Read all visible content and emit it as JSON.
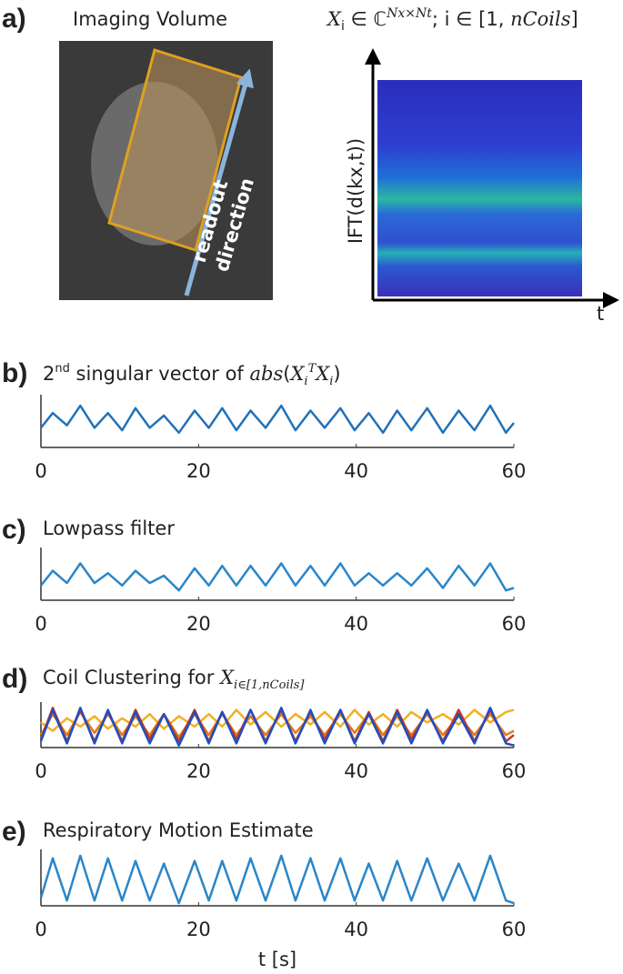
{
  "panel_a": {
    "label": "a)",
    "image_title": "Imaging Volume",
    "arrow_text": [
      "readout",
      "direction"
    ],
    "formula": [
      "X",
      "i",
      " ∈ ℂ",
      "Nx×Nt",
      "; i ∈ [1, ",
      "nCoils",
      "]"
    ],
    "y_axis_label": "IFT(d(kx,t))",
    "x_axis_label": "t"
  },
  "chart_data": [
    {
      "type": "line",
      "label": "b)",
      "title": [
        "2",
        "nd",
        " singular vector of ",
        "abs",
        "(",
        "X",
        "i",
        "T",
        "X",
        "i",
        ")"
      ],
      "x": [
        0,
        1.5,
        3.3,
        5,
        6.8,
        8.5,
        10.3,
        12,
        13.8,
        15.6,
        17.5,
        19.5,
        21.3,
        23,
        24.8,
        26.6,
        28.5,
        30.5,
        32.3,
        34.2,
        36,
        38,
        39.8,
        41.6,
        43.4,
        45.2,
        47,
        49,
        51,
        53,
        55,
        57,
        59,
        60
      ],
      "series": [
        {
          "color": "#2272b8",
          "values": [
            0.4,
            0.7,
            0.45,
            0.85,
            0.4,
            0.7,
            0.35,
            0.8,
            0.4,
            0.65,
            0.3,
            0.75,
            0.4,
            0.8,
            0.35,
            0.75,
            0.4,
            0.85,
            0.35,
            0.75,
            0.4,
            0.8,
            0.35,
            0.7,
            0.3,
            0.75,
            0.35,
            0.8,
            0.3,
            0.75,
            0.35,
            0.85,
            0.3,
            0.5
          ]
        }
      ],
      "xlim": [
        0,
        60
      ],
      "ylim": [
        0,
        1
      ],
      "xticks": [
        0,
        20,
        40,
        60
      ]
    },
    {
      "type": "line",
      "label": "c)",
      "title": [
        "Lowpass filter"
      ],
      "x": [
        0,
        1.5,
        3.3,
        5,
        6.8,
        8.5,
        10.3,
        12,
        13.8,
        15.6,
        17.5,
        19.5,
        21.3,
        23,
        24.8,
        26.6,
        28.5,
        30.5,
        32.3,
        34.2,
        36,
        38,
        39.8,
        41.6,
        43.4,
        45.2,
        47,
        49,
        51,
        53,
        55,
        57,
        59,
        60
      ],
      "series": [
        {
          "color": "#2a86c8",
          "values": [
            0.3,
            0.6,
            0.35,
            0.75,
            0.35,
            0.55,
            0.3,
            0.6,
            0.35,
            0.5,
            0.2,
            0.65,
            0.3,
            0.7,
            0.3,
            0.7,
            0.3,
            0.75,
            0.3,
            0.7,
            0.3,
            0.75,
            0.3,
            0.55,
            0.3,
            0.55,
            0.3,
            0.65,
            0.25,
            0.7,
            0.3,
            0.75,
            0.2,
            0.25
          ]
        }
      ],
      "xlim": [
        0,
        60
      ],
      "ylim": [
        0,
        1
      ],
      "xticks": [
        0,
        20,
        40,
        60
      ]
    },
    {
      "type": "line",
      "label": "d)",
      "title": [
        "Coil Clustering for ",
        "X",
        "i∈[1,nCoils]"
      ],
      "x": [
        0,
        1.5,
        3.3,
        5,
        6.8,
        8.5,
        10.3,
        12,
        13.8,
        15.6,
        17.5,
        19.5,
        21.3,
        23,
        24.8,
        26.6,
        28.5,
        30.5,
        32.3,
        34.2,
        36,
        38,
        39.8,
        41.6,
        43.4,
        45.2,
        47,
        49,
        51,
        53,
        55,
        57,
        59,
        60
      ],
      "series": [
        {
          "color": "#f2b01e",
          "values": [
            0.6,
            0.4,
            0.7,
            0.5,
            0.75,
            0.45,
            0.7,
            0.5,
            0.8,
            0.45,
            0.75,
            0.5,
            0.8,
            0.5,
            0.9,
            0.55,
            0.85,
            0.5,
            0.8,
            0.55,
            0.85,
            0.5,
            0.9,
            0.55,
            0.8,
            0.5,
            0.85,
            0.6,
            0.8,
            0.55,
            0.9,
            0.6,
            0.85,
            0.9
          ]
        },
        {
          "color": "#e07b1e",
          "values": [
            0.3,
            0.8,
            0.3,
            0.85,
            0.35,
            0.8,
            0.3,
            0.75,
            0.3,
            0.8,
            0.25,
            0.8,
            0.3,
            0.8,
            0.3,
            0.75,
            0.3,
            0.8,
            0.35,
            0.75,
            0.3,
            0.8,
            0.35,
            0.8,
            0.3,
            0.75,
            0.3,
            0.8,
            0.3,
            0.75,
            0.3,
            0.8,
            0.3,
            0.4
          ]
        },
        {
          "color": "#c0392b",
          "values": [
            0.2,
            0.95,
            0.15,
            0.9,
            0.15,
            0.85,
            0.15,
            0.9,
            0.2,
            0.8,
            0.15,
            0.9,
            0.15,
            0.85,
            0.2,
            0.9,
            0.15,
            0.9,
            0.15,
            0.85,
            0.2,
            0.9,
            0.15,
            0.85,
            0.15,
            0.9,
            0.2,
            0.85,
            0.15,
            0.9,
            0.15,
            0.9,
            0.15,
            0.3
          ]
        },
        {
          "color": "#1f4fbf",
          "values": [
            0.15,
            0.9,
            0.1,
            0.95,
            0.1,
            0.9,
            0.1,
            0.85,
            0.1,
            0.8,
            0.05,
            0.85,
            0.1,
            0.85,
            0.1,
            0.9,
            0.1,
            0.95,
            0.1,
            0.9,
            0.1,
            0.9,
            0.1,
            0.8,
            0.1,
            0.85,
            0.1,
            0.9,
            0.1,
            0.8,
            0.1,
            0.95,
            0.1,
            0.05
          ]
        }
      ],
      "xlim": [
        0,
        60
      ],
      "ylim": [
        0,
        1
      ],
      "xticks": [
        0,
        20,
        40,
        60
      ]
    },
    {
      "type": "line",
      "label": "e)",
      "title": [
        "Respiratory Motion Estimate"
      ],
      "xlabel": "t [s]",
      "x": [
        0,
        1.5,
        3.3,
        5,
        6.8,
        8.5,
        10.3,
        12,
        13.8,
        15.6,
        17.5,
        19.5,
        21.3,
        23,
        24.8,
        26.6,
        28.5,
        30.5,
        32.3,
        34.2,
        36,
        38,
        39.8,
        41.6,
        43.4,
        45.2,
        47,
        49,
        51,
        53,
        55,
        57,
        59,
        60
      ],
      "series": [
        {
          "color": "#2a86c8",
          "values": [
            0.15,
            0.9,
            0.1,
            0.95,
            0.1,
            0.9,
            0.1,
            0.85,
            0.1,
            0.8,
            0.05,
            0.85,
            0.1,
            0.85,
            0.1,
            0.9,
            0.1,
            0.95,
            0.1,
            0.9,
            0.1,
            0.9,
            0.1,
            0.8,
            0.1,
            0.85,
            0.1,
            0.9,
            0.1,
            0.8,
            0.1,
            0.95,
            0.1,
            0.05
          ]
        }
      ],
      "xlim": [
        0,
        60
      ],
      "ylim": [
        0,
        1
      ],
      "xticks": [
        0,
        20,
        40,
        60
      ]
    }
  ]
}
